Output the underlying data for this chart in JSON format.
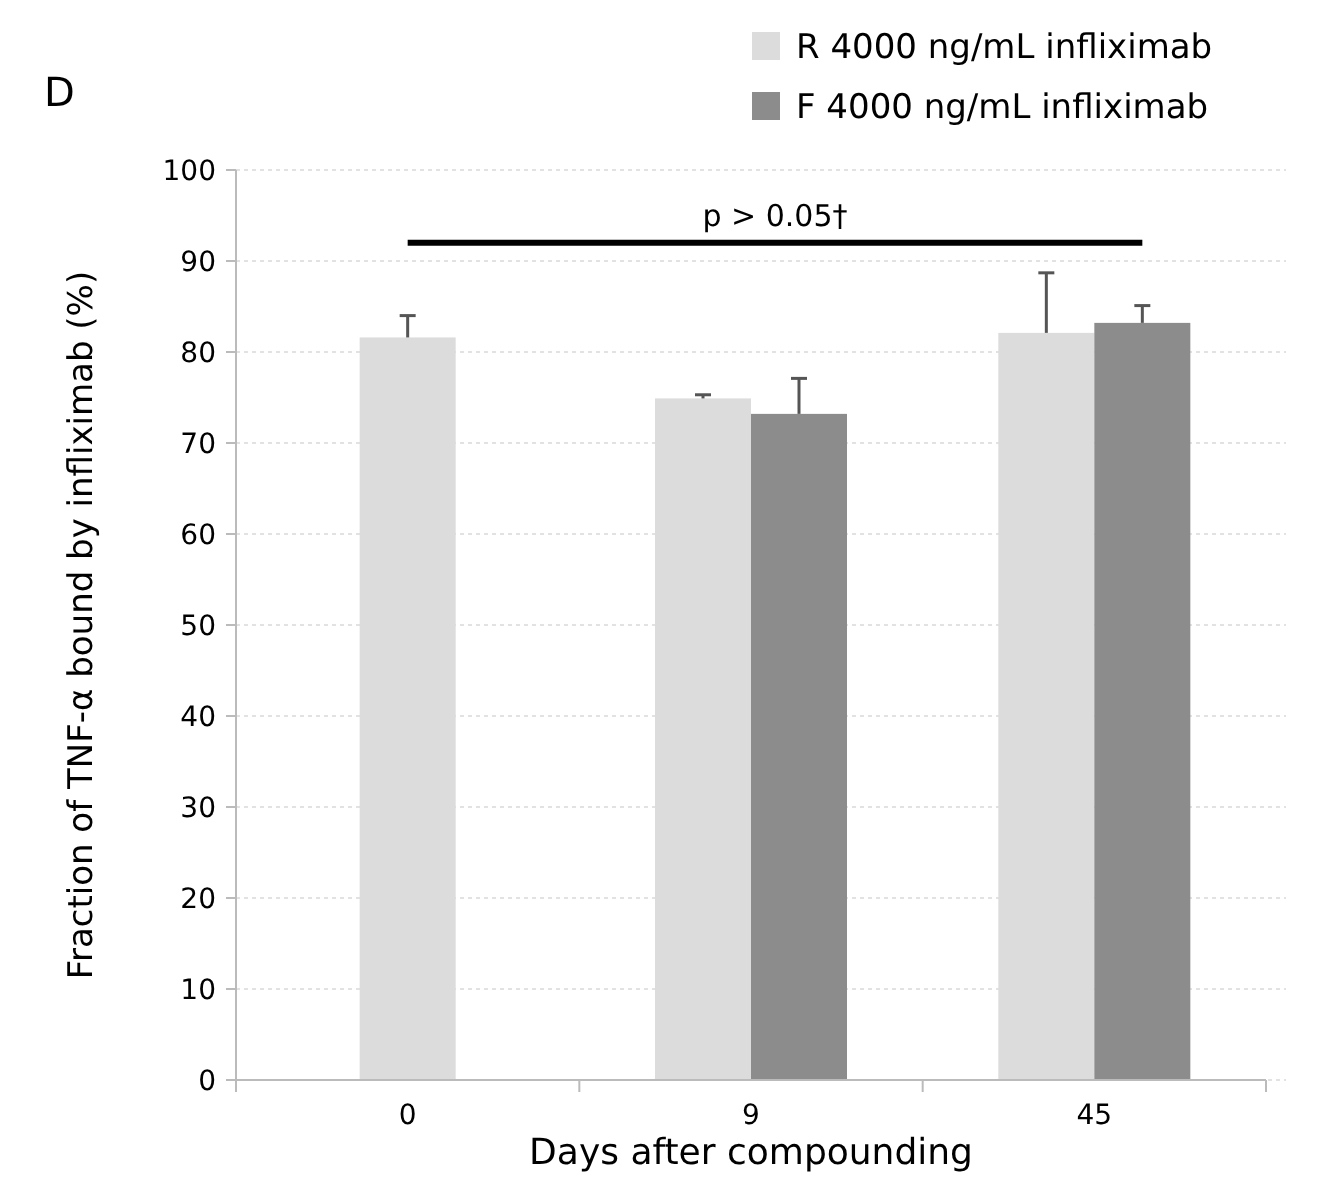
{
  "chart_data": {
    "type": "bar",
    "categories": [
      "0",
      "9",
      "45"
    ],
    "series": [
      {
        "name": "R 4000 ng/mL infliximab",
        "color": "#dcdcdc",
        "values": [
          81.6,
          74.9,
          82.1
        ],
        "errors": [
          [
            81.6,
            84.0
          ],
          [
            74.9,
            75.3
          ],
          [
            82.1,
            88.7
          ]
        ]
      },
      {
        "name": "F 4000 ng/mL infliximab",
        "color": "#8c8c8c",
        "values": [
          null,
          73.2,
          83.2
        ],
        "errors": [
          null,
          [
            73.2,
            77.1
          ],
          [
            83.2,
            85.1
          ]
        ]
      }
    ],
    "xlabel": "Days after compounding",
    "ylabel": "Fraction of TNF-α  bound by infliximab (%)",
    "ylim": [
      0,
      100
    ],
    "yticks": [
      0,
      10,
      20,
      30,
      40,
      50,
      60,
      70,
      80,
      90,
      100
    ],
    "grid": "y",
    "legend": "top right",
    "annotations": [
      "D",
      "p > 0.05†"
    ]
  }
}
